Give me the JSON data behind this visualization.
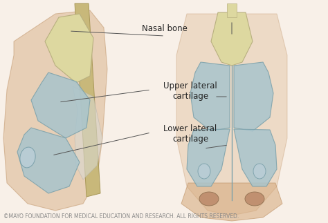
{
  "background_color": "#f5ede0",
  "title": "",
  "copyright_text": "©MAYO FOUNDATION FOR MEDICAL EDUCATION AND RESEARCH. ALL RIGHTS RESERVED.",
  "copyright_fontsize": 5.5,
  "copyright_color": "#888888",
  "labels": {
    "nasal_bone": "Nasal bone",
    "upper_lateral": "Upper lateral\ncartilage",
    "lower_lateral": "Lower lateral\ncartilage"
  },
  "label_fontsize": 8.5,
  "label_color": "#222222",
  "line_color": "#555555",
  "line_width": 0.7,
  "bone_color_light": "#e8e4c0",
  "bone_color_dark": "#d4c98a",
  "cartilage_fill": "#a8c4cc",
  "cartilage_edge": "#7aa0aa",
  "skin_fill": "#d4a87a",
  "skin_edge": "#b8895a",
  "white_area": "#e8e8e8"
}
